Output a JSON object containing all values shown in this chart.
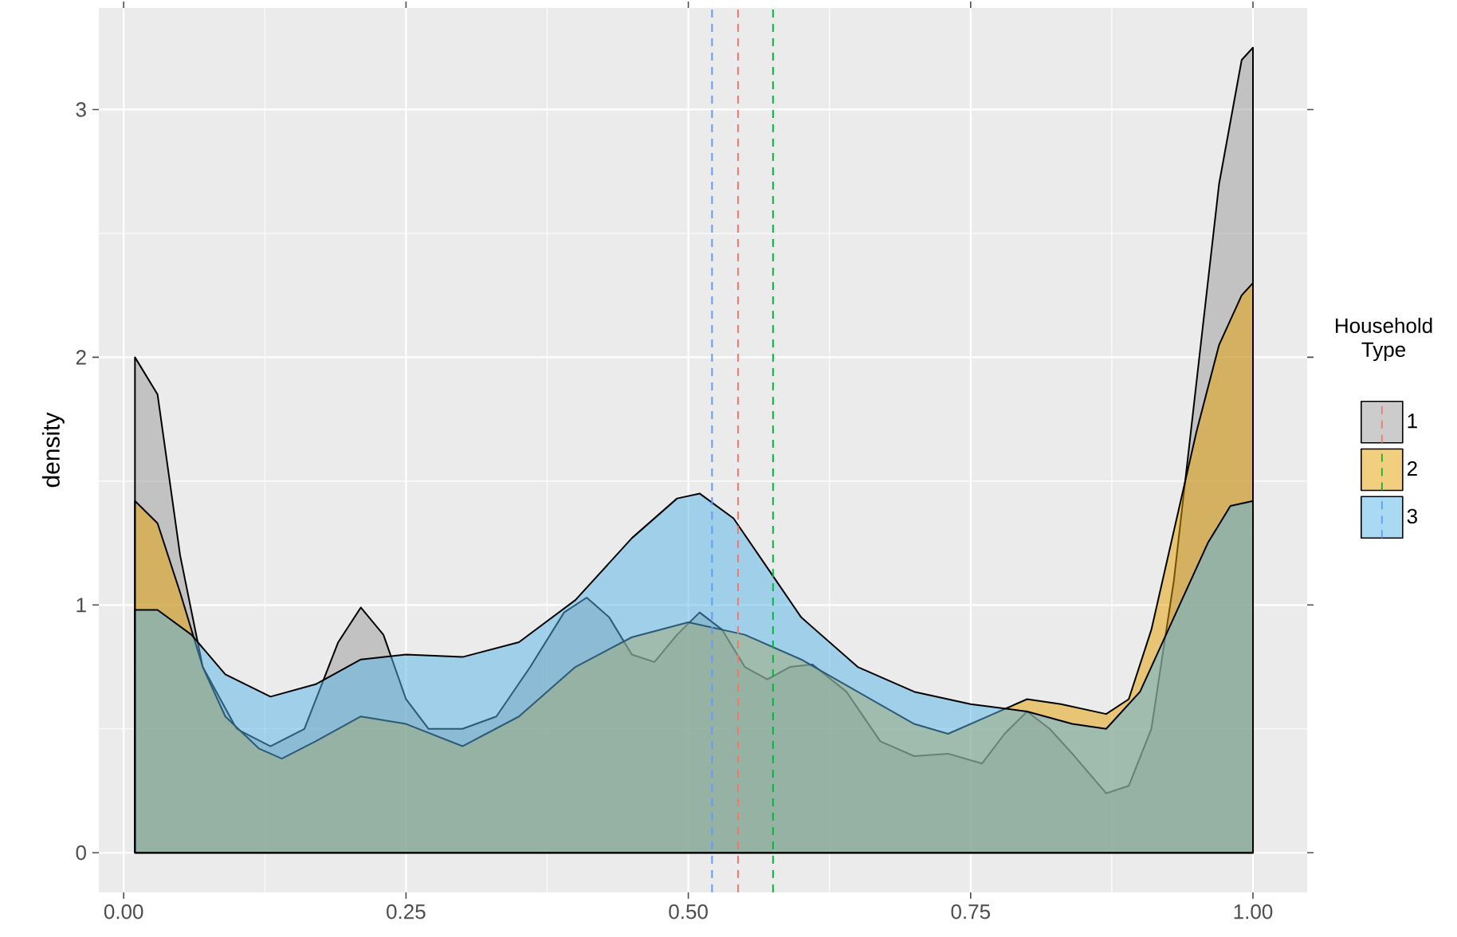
{
  "chart_data": {
    "type": "area",
    "ylabel": "density",
    "legend_title": "Household Type",
    "legend": "right",
    "grid": true,
    "xlim": [
      -0.022,
      1.048
    ],
    "ylim": [
      -0.16,
      3.41
    ],
    "xticks": [
      {
        "value": 0,
        "label": "0.00"
      },
      {
        "value": 0.25,
        "label": "0.25"
      },
      {
        "value": 0.5,
        "label": "0.50"
      },
      {
        "value": 0.75,
        "label": "0.75"
      },
      {
        "value": 1,
        "label": "1.00"
      }
    ],
    "yticks": [
      0,
      1,
      2,
      3
    ],
    "series": [
      {
        "name": "1",
        "color": "#999999",
        "x": [
          0.01,
          0.03,
          0.05,
          0.07,
          0.1,
          0.13,
          0.16,
          0.19,
          0.21,
          0.23,
          0.25,
          0.27,
          0.3,
          0.33,
          0.36,
          0.39,
          0.41,
          0.43,
          0.45,
          0.47,
          0.49,
          0.51,
          0.53,
          0.55,
          0.57,
          0.59,
          0.61,
          0.64,
          0.67,
          0.7,
          0.73,
          0.76,
          0.78,
          0.8,
          0.82,
          0.84,
          0.87,
          0.89,
          0.91,
          0.93,
          0.95,
          0.97,
          0.99,
          1.0
        ],
        "values": [
          2.0,
          1.85,
          1.2,
          0.75,
          0.5,
          0.43,
          0.5,
          0.85,
          0.99,
          0.88,
          0.62,
          0.5,
          0.5,
          0.55,
          0.75,
          0.97,
          1.03,
          0.95,
          0.8,
          0.77,
          0.88,
          0.97,
          0.9,
          0.75,
          0.7,
          0.75,
          0.76,
          0.65,
          0.45,
          0.39,
          0.4,
          0.36,
          0.48,
          0.57,
          0.5,
          0.4,
          0.24,
          0.27,
          0.5,
          1.1,
          1.9,
          2.7,
          3.2,
          3.25
        ]
      },
      {
        "name": "2",
        "color": "#E69F00",
        "x": [
          0.01,
          0.03,
          0.05,
          0.07,
          0.09,
          0.12,
          0.14,
          0.17,
          0.21,
          0.25,
          0.3,
          0.35,
          0.4,
          0.45,
          0.5,
          0.55,
          0.6,
          0.65,
          0.7,
          0.73,
          0.77,
          0.8,
          0.83,
          0.87,
          0.89,
          0.91,
          0.93,
          0.95,
          0.97,
          0.99,
          1.0
        ],
        "values": [
          1.42,
          1.33,
          1.05,
          0.75,
          0.55,
          0.42,
          0.38,
          0.45,
          0.55,
          0.52,
          0.43,
          0.55,
          0.75,
          0.87,
          0.93,
          0.88,
          0.78,
          0.65,
          0.52,
          0.48,
          0.56,
          0.62,
          0.6,
          0.56,
          0.62,
          0.9,
          1.3,
          1.7,
          2.05,
          2.25,
          2.3
        ]
      },
      {
        "name": "3",
        "color": "#56B4E9",
        "x": [
          0.01,
          0.03,
          0.06,
          0.09,
          0.13,
          0.17,
          0.21,
          0.25,
          0.3,
          0.35,
          0.4,
          0.45,
          0.49,
          0.51,
          0.54,
          0.57,
          0.6,
          0.65,
          0.7,
          0.75,
          0.8,
          0.84,
          0.87,
          0.9,
          0.93,
          0.96,
          0.98,
          1.0
        ],
        "values": [
          0.98,
          0.98,
          0.88,
          0.72,
          0.63,
          0.68,
          0.78,
          0.8,
          0.79,
          0.85,
          1.02,
          1.27,
          1.43,
          1.45,
          1.35,
          1.15,
          0.95,
          0.75,
          0.65,
          0.6,
          0.57,
          0.52,
          0.5,
          0.65,
          0.95,
          1.25,
          1.4,
          1.42
        ]
      }
    ],
    "ref_lines": [
      {
        "axis": "x",
        "value": 0.544,
        "color": "#F8766D",
        "line_style": "dashed"
      },
      {
        "axis": "x",
        "value": 0.575,
        "color": "#00BA38",
        "line_style": "dashed"
      },
      {
        "axis": "x",
        "value": 0.521,
        "color": "#619CFF",
        "line_style": "dashed"
      }
    ]
  }
}
